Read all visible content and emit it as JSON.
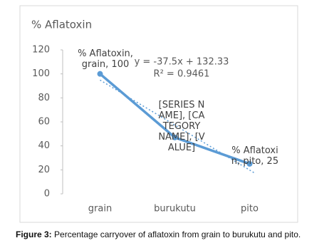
{
  "chart_data": {
    "type": "line",
    "title": "% Aflatoxin",
    "categories": [
      "grain",
      "burukutu",
      "pito"
    ],
    "series": [
      {
        "name": "% Aflatoxin",
        "color": "#5b9bd5",
        "values": [
          100,
          47,
          25
        ],
        "value_labels": [
          "% Aflatoxin, grain, 100",
          "[SERIES NAME], [CATEGORY NAME], [VALUE]",
          "% Aflatoxin, pito, 25"
        ]
      }
    ],
    "trendline": {
      "slope": -37.5,
      "intercept": 132.33,
      "equation": "y = -37.5x + 132.33",
      "r_squared": "R² = 0.9461"
    },
    "ylim": [
      0,
      120
    ],
    "yticks": [
      0,
      20,
      40,
      60,
      80,
      100,
      120
    ],
    "grid": false
  },
  "caption": {
    "label": "Figure 3:",
    "text": "Percentage carryover of aflatoxin from grain to burukutu and pito."
  }
}
